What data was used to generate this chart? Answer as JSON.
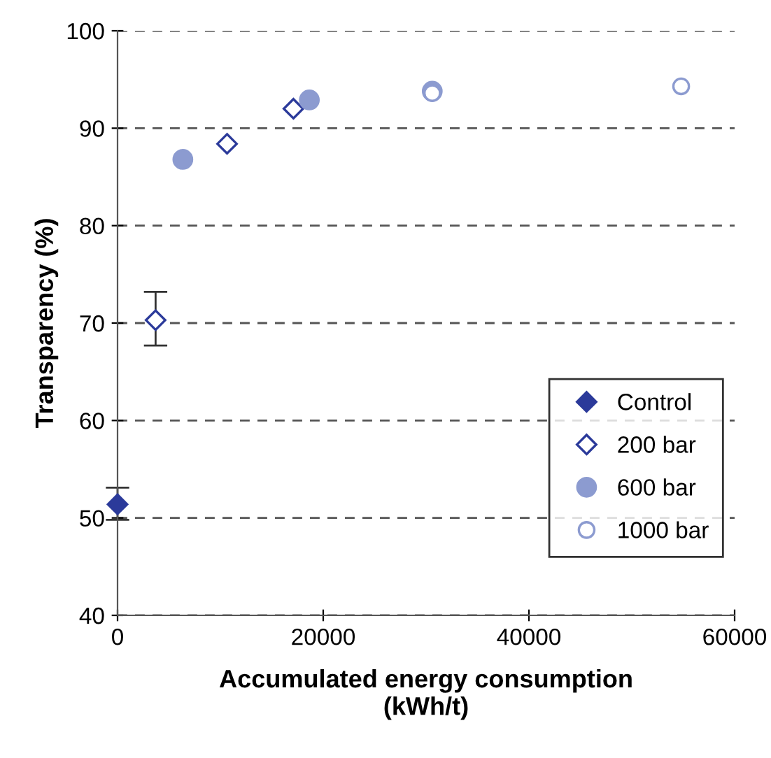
{
  "chart_data": {
    "type": "scatter",
    "xlabel": "Accumulated energy consumption\n(kWh/t)",
    "ylabel": "Transparency (%)",
    "xlim": [
      0,
      60000
    ],
    "xticks": [
      0,
      20000,
      40000,
      60000
    ],
    "ylim": [
      40,
      100
    ],
    "yticks": [
      40,
      50,
      60,
      70,
      80,
      90,
      100
    ],
    "grid": "y",
    "legend": "bottom right",
    "series": [
      {
        "name": "Control",
        "color": "#2b3a9a",
        "marker": "diamond",
        "x": [
          0
        ],
        "values": [
          51.4
        ],
        "errors": [
          [
            49.8,
            53.1
          ]
        ]
      },
      {
        "name": "200 bar",
        "color": "#2b3a9a",
        "marker": "diamond",
        "x": [
          3700,
          10650,
          17100
        ],
        "values": [
          70.3,
          88.4,
          92.0
        ],
        "errors": [
          [
            67.7,
            73.2
          ],
          null,
          null
        ]
      },
      {
        "name": "600 bar",
        "color": "#8c9bd0",
        "marker": "circle",
        "x": [
          6350,
          18650,
          30600
        ],
        "values": [
          86.8,
          92.9,
          93.8
        ]
      },
      {
        "name": "1000 bar",
        "color": "#8c9bd0",
        "marker": "circle",
        "x": [
          30600,
          54800
        ],
        "values": [
          93.6,
          94.3
        ]
      }
    ]
  }
}
